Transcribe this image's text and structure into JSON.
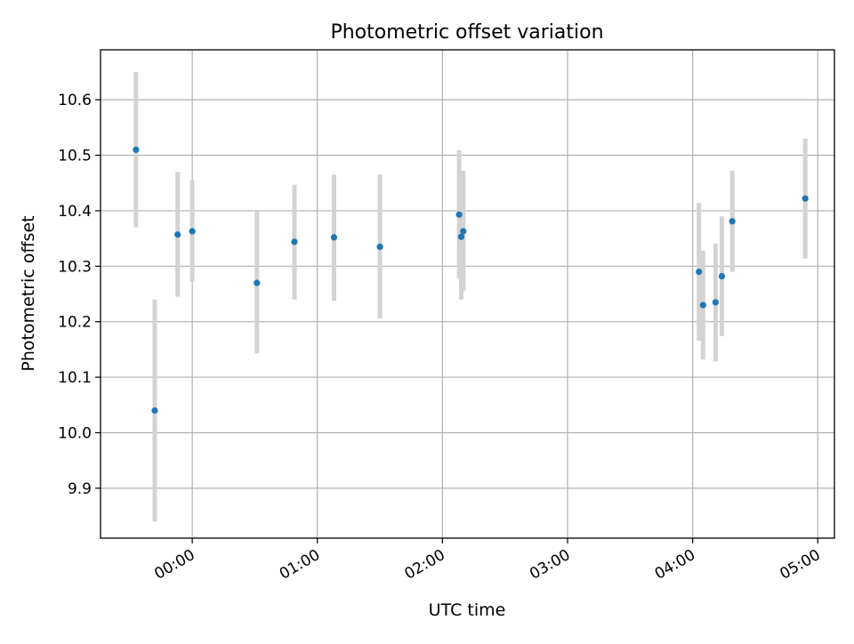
{
  "chart_data": {
    "type": "scatter",
    "title": "Photometric offset variation",
    "xlabel": "UTC time",
    "ylabel": "Photometric offset",
    "x_axis_type": "time",
    "xlim": [
      "23:16",
      "05:08"
    ],
    "ylim": [
      9.81,
      10.69
    ],
    "grid": true,
    "x_ticks": [
      "00:00",
      "01:00",
      "02:00",
      "03:00",
      "04:00",
      "05:00"
    ],
    "y_ticks": [
      "9.9",
      "10.0",
      "10.1",
      "10.2",
      "10.3",
      "10.4",
      "10.5",
      "10.6"
    ],
    "series": [
      {
        "point_color": "#1f77b4",
        "errorbar_color": "#d3d3d3",
        "points": [
          {
            "x": "23:33",
            "y": 10.51,
            "ylow": 10.37,
            "yhigh": 10.65
          },
          {
            "x": "23:42",
            "y": 10.04,
            "ylow": 9.84,
            "yhigh": 10.24
          },
          {
            "x": "23:53",
            "y": 10.357,
            "ylow": 10.245,
            "yhigh": 10.47
          },
          {
            "x": "00:00",
            "y": 10.363,
            "ylow": 10.272,
            "yhigh": 10.455
          },
          {
            "x": "00:31",
            "y": 10.27,
            "ylow": 10.143,
            "yhigh": 10.4
          },
          {
            "x": "00:49",
            "y": 10.344,
            "ylow": 10.24,
            "yhigh": 10.447
          },
          {
            "x": "01:08",
            "y": 10.352,
            "ylow": 10.238,
            "yhigh": 10.465
          },
          {
            "x": "01:30",
            "y": 10.335,
            "ylow": 10.206,
            "yhigh": 10.465
          },
          {
            "x": "02:08",
            "y": 10.393,
            "ylow": 10.277,
            "yhigh": 10.509
          },
          {
            "x": "02:09",
            "y": 10.353,
            "ylow": 10.24,
            "yhigh": 10.47
          },
          {
            "x": "02:10",
            "y": 10.363,
            "ylow": 10.255,
            "yhigh": 10.472
          },
          {
            "x": "04:03",
            "y": 10.29,
            "ylow": 10.166,
            "yhigh": 10.414
          },
          {
            "x": "04:05",
            "y": 10.23,
            "ylow": 10.132,
            "yhigh": 10.328
          },
          {
            "x": "04:11",
            "y": 10.235,
            "ylow": 10.128,
            "yhigh": 10.341
          },
          {
            "x": "04:14",
            "y": 10.282,
            "ylow": 10.174,
            "yhigh": 10.39
          },
          {
            "x": "04:19",
            "y": 10.381,
            "ylow": 10.29,
            "yhigh": 10.472
          },
          {
            "x": "04:54",
            "y": 10.422,
            "ylow": 10.314,
            "yhigh": 10.53
          }
        ]
      }
    ]
  }
}
